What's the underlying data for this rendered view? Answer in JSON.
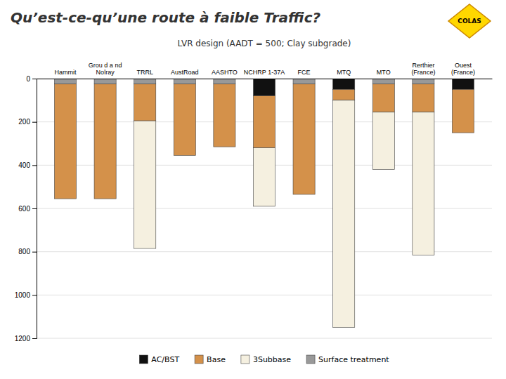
{
  "chart_data": {
    "type": "bar",
    "stacked": true,
    "title": "Qu’est-ce-qu’une route à faible Traffic?",
    "subtitle": "LVR design (AADT = 500; Clay subgrade)",
    "annotations": [
      "COLAS"
    ],
    "categories": [
      "Hammit",
      "Grou d a nd\nNolray",
      "TRRL",
      "AustRoad",
      "AASHTO",
      "NCHRP 1-37A",
      "FCE",
      "MTQ",
      "MTO",
      "Rerthier\n(France)",
      "Ouest\n(France)"
    ],
    "series": [
      {
        "name": "AC/BST",
        "color": "#111111",
        "values": [
          0,
          0,
          0,
          0,
          0,
          80,
          0,
          50,
          0,
          0,
          50
        ]
      },
      {
        "name": "Base",
        "color": "#d4914a",
        "values": [
          530,
          530,
          170,
          330,
          290,
          240,
          510,
          50,
          130,
          130,
          200
        ]
      },
      {
        "name": "3Subbase",
        "color": "#f5f0e0",
        "values": [
          0,
          0,
          590,
          0,
          0,
          270,
          0,
          1050,
          265,
          660,
          0
        ]
      },
      {
        "name": "Surface treatment",
        "color": "#999999",
        "values": [
          25,
          25,
          25,
          25,
          25,
          0,
          25,
          0,
          25,
          25,
          0
        ]
      }
    ],
    "ylim": [
      1200,
      0
    ],
    "yticks": [
      0,
      200,
      400,
      600,
      800,
      1000,
      1200
    ],
    "grid": true,
    "legend": "bottom"
  }
}
